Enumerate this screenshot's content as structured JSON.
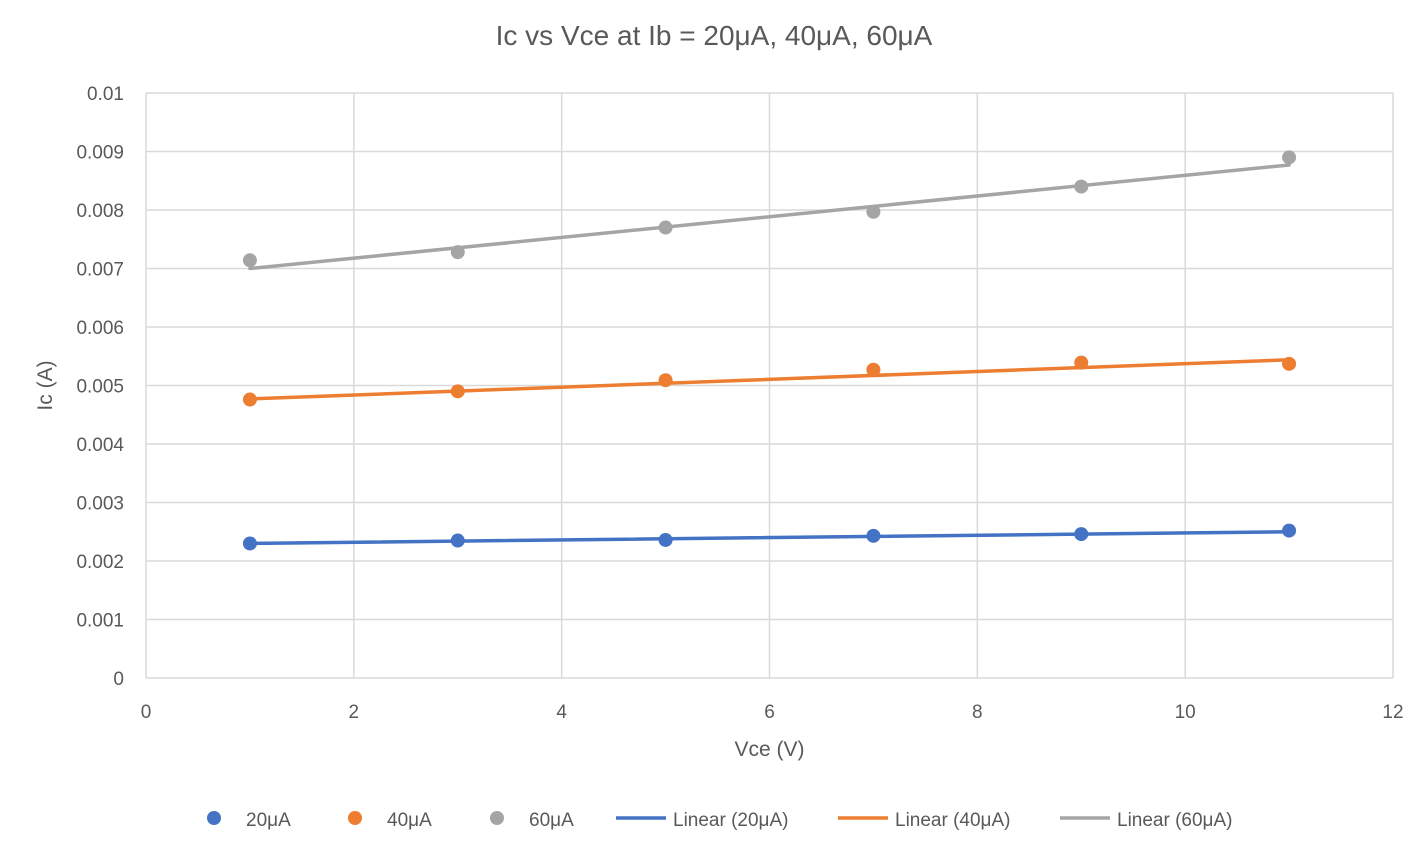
{
  "chart_data": {
    "type": "scatter",
    "title": "Ic vs Vce at Ib = 20μA, 40μA, 60μA",
    "xlabel": "Vce (V)",
    "ylabel": "Ic (A)",
    "xlim": [
      0,
      12
    ],
    "ylim": [
      0,
      0.01
    ],
    "x_ticks": [
      0,
      2,
      4,
      6,
      8,
      10,
      12
    ],
    "y_ticks": [
      0,
      0.001,
      0.002,
      0.003,
      0.004,
      0.005,
      0.006,
      0.007,
      0.008,
      0.009,
      0.01
    ],
    "x_tick_labels": [
      "0",
      "2",
      "4",
      "6",
      "8",
      "10",
      "12"
    ],
    "y_tick_labels": [
      "0",
      "0.001",
      "0.002",
      "0.003",
      "0.004",
      "0.005",
      "0.006",
      "0.007",
      "0.008",
      "0.009",
      "0.01"
    ],
    "grid": true,
    "legend_position": "bottom",
    "series": [
      {
        "name": "20μA",
        "color": "#4472C4",
        "x": [
          1,
          3,
          5,
          7,
          9,
          11
        ],
        "y": [
          0.0023,
          0.00235,
          0.00236,
          0.00243,
          0.00246,
          0.00252
        ],
        "trendline": {
          "name": "Linear (20μA)",
          "x": [
            1,
            11
          ],
          "y": [
            0.0023,
            0.0025
          ]
        }
      },
      {
        "name": "40μA",
        "color": "#ED7D31",
        "x": [
          1,
          3,
          5,
          7,
          9,
          11
        ],
        "y": [
          0.00476,
          0.0049,
          0.00509,
          0.00527,
          0.00539,
          0.00537
        ],
        "trendline": {
          "name": "Linear (40μA)",
          "x": [
            1,
            11
          ],
          "y": [
            0.00477,
            0.00544
          ]
        }
      },
      {
        "name": "60μA",
        "color": "#A5A5A5",
        "x": [
          1,
          3,
          5,
          7,
          9,
          11
        ],
        "y": [
          0.00714,
          0.00728,
          0.0077,
          0.00797,
          0.0084,
          0.0089
        ],
        "trendline": {
          "name": "Linear (60μA)",
          "x": [
            1,
            11
          ],
          "y": [
            0.007,
            0.00877
          ]
        }
      }
    ]
  }
}
